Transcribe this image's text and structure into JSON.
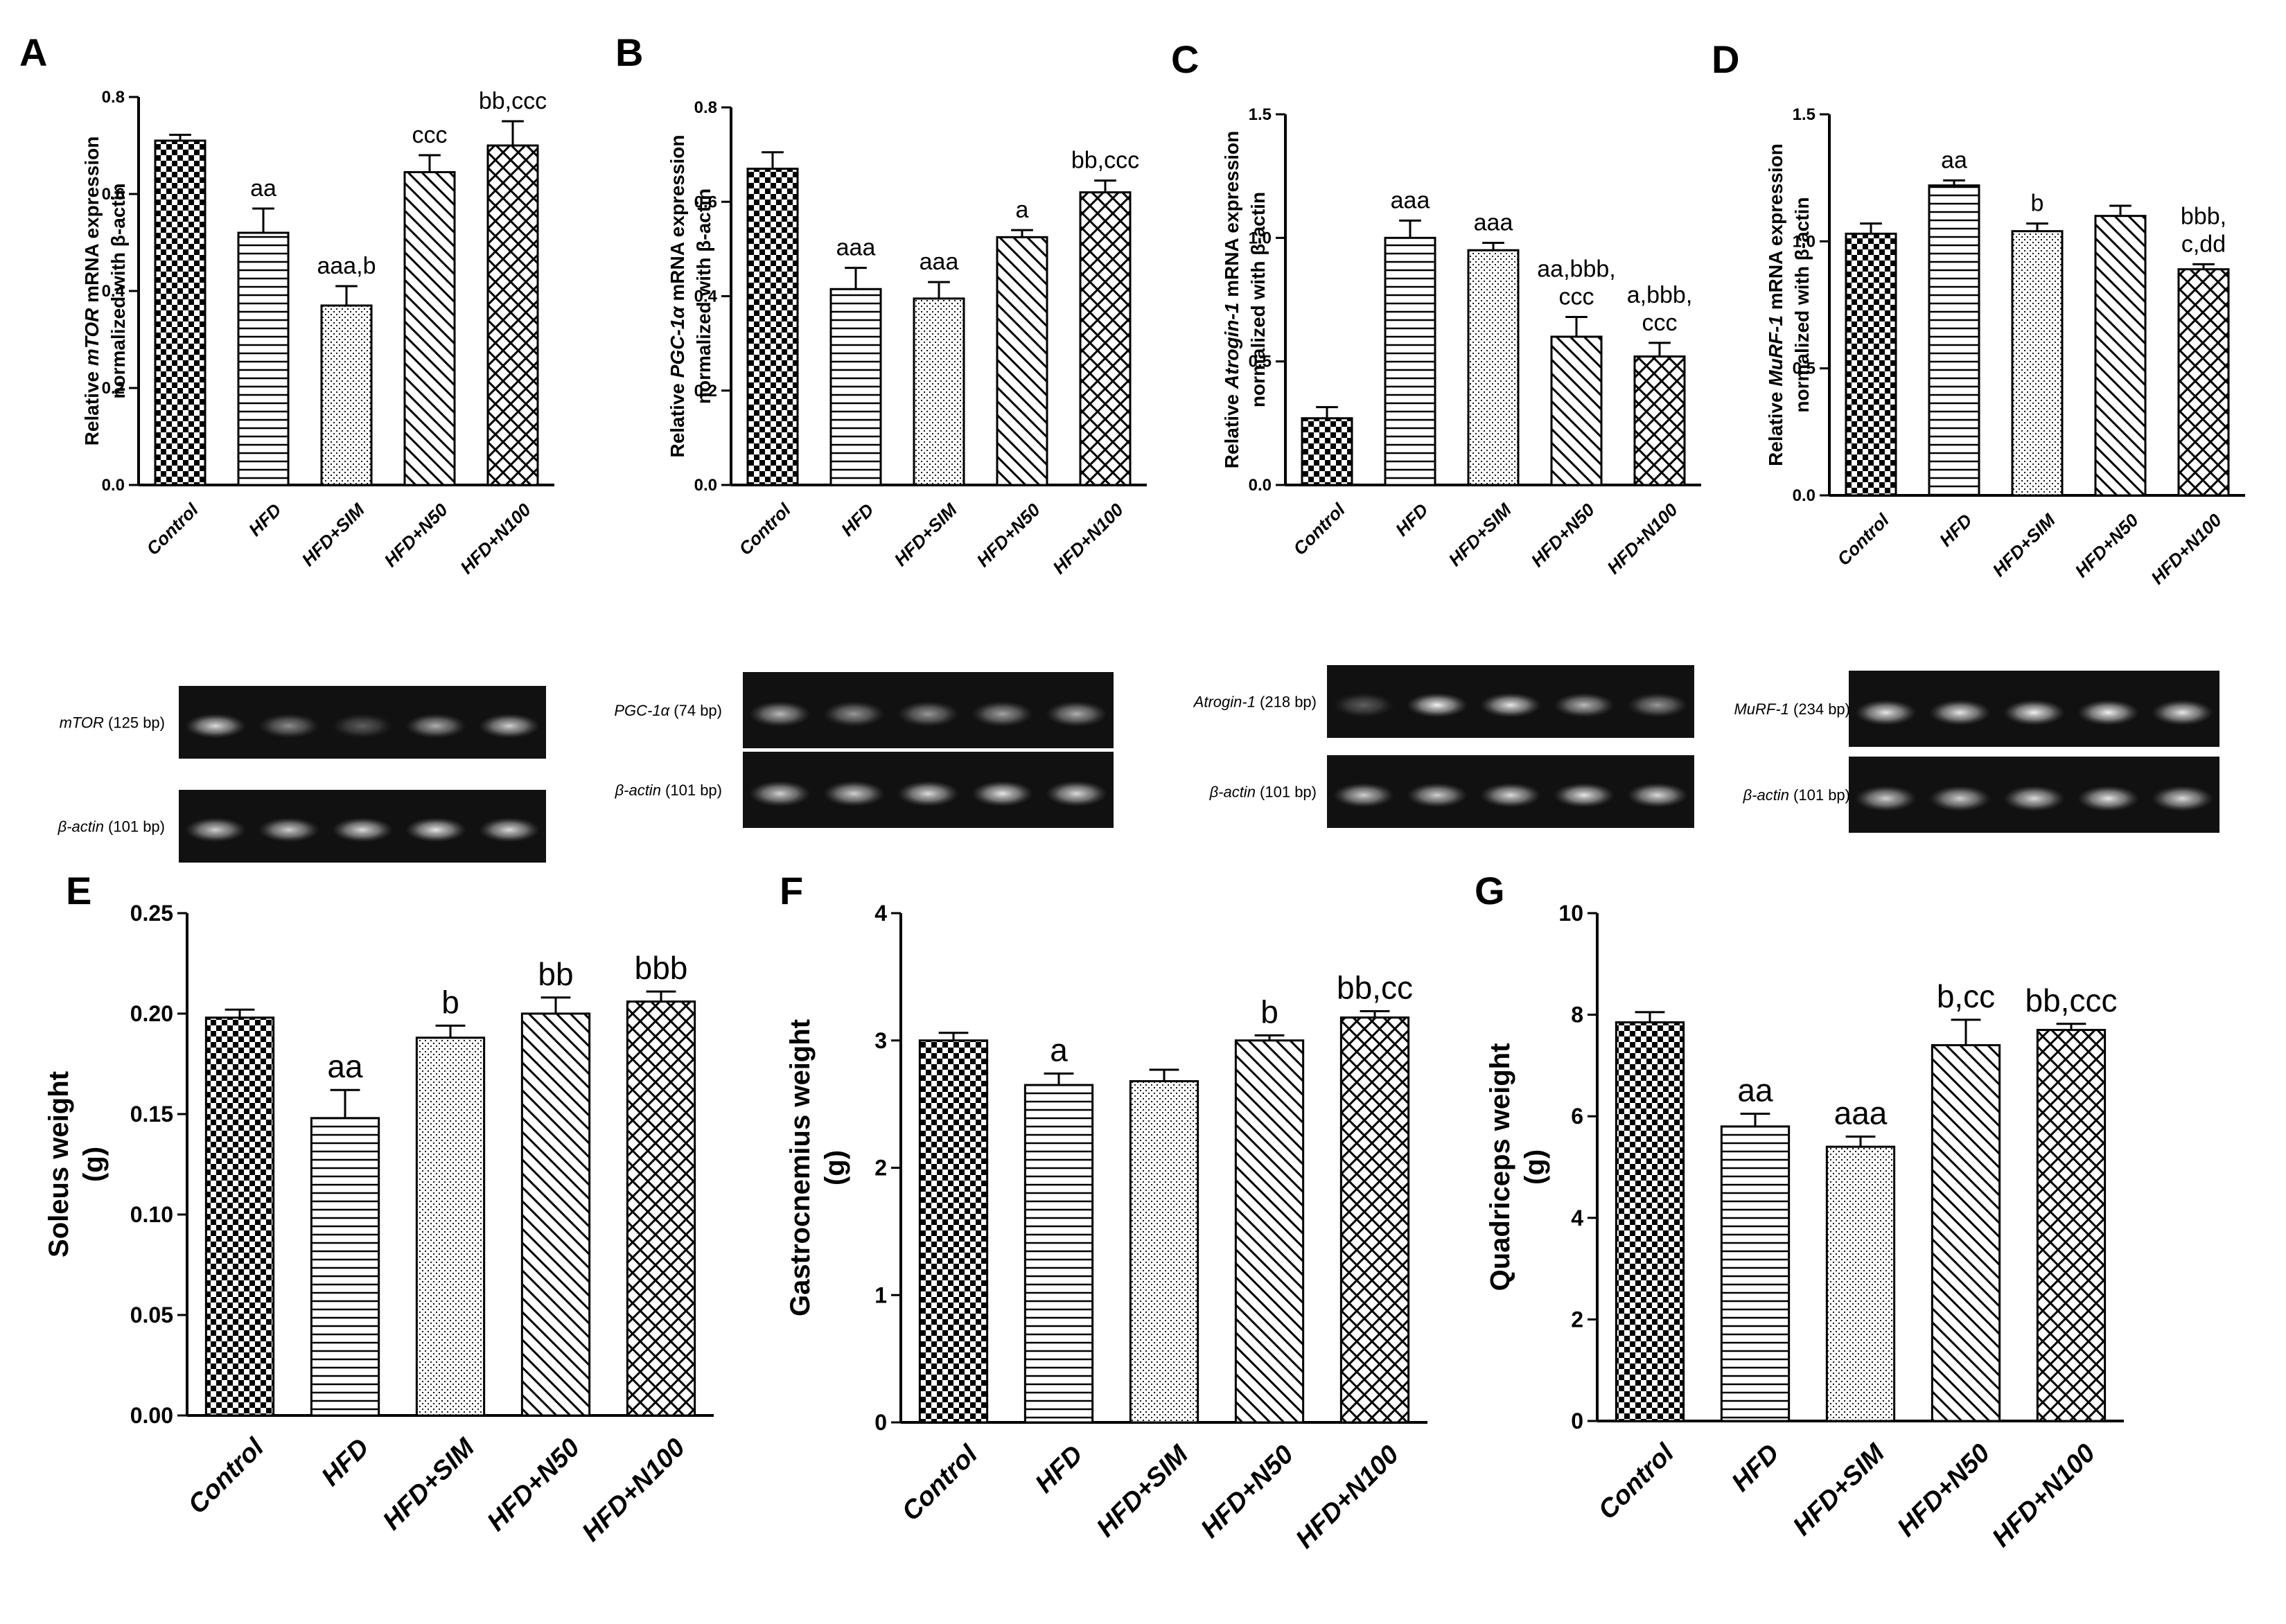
{
  "categories": [
    "Control",
    "HFD",
    "HFD+SIM",
    "HFD+N50",
    "HFD+N100"
  ],
  "chart_data": [
    {
      "id": "A",
      "type": "bar",
      "ylabel_line1_pre": "Relative ",
      "ylabel_gene": "mTOR",
      "ylabel_line1_post": " mRNA expression",
      "ylabel_line2": "normalized with β-actin",
      "ylim": [
        0,
        0.8
      ],
      "ticks": [
        "0.0",
        "0.2",
        "0.4",
        "0.6",
        "0.8"
      ],
      "values": [
        0.71,
        0.52,
        0.37,
        0.645,
        0.7
      ],
      "errors": [
        0.012,
        0.05,
        0.04,
        0.035,
        0.05
      ],
      "labels": [
        [],
        [
          "aa"
        ],
        [
          "aaa,b"
        ],
        [
          "ccc"
        ],
        [
          "bb,ccc"
        ]
      ]
    },
    {
      "id": "B",
      "type": "bar",
      "ylabel_line1_pre": "Relative ",
      "ylabel_gene": "PGC-1α",
      "ylabel_line1_post": " mRNA expression",
      "ylabel_line2": "normalized with β-actin",
      "ylim": [
        0,
        0.8
      ],
      "ticks": [
        "0.0",
        "0.2",
        "0.4",
        "0.6",
        "0.8"
      ],
      "values": [
        0.67,
        0.415,
        0.395,
        0.525,
        0.62
      ],
      "errors": [
        0.035,
        0.045,
        0.035,
        0.015,
        0.025
      ],
      "labels": [
        [],
        [
          "aaa"
        ],
        [
          "aaa"
        ],
        [
          "a"
        ],
        [
          "bb,ccc"
        ]
      ]
    },
    {
      "id": "C",
      "type": "bar",
      "ylabel_line1_pre": "Relative ",
      "ylabel_gene": "Atrogin-1",
      "ylabel_line1_post": " mRNA expression",
      "ylabel_line2": "normalized with β-actin",
      "ylim": [
        0,
        1.5
      ],
      "ticks": [
        "0.0",
        "0.5",
        "1.0",
        "1.5"
      ],
      "values": [
        0.27,
        1.0,
        0.95,
        0.6,
        0.52
      ],
      "errors": [
        0.045,
        0.07,
        0.03,
        0.08,
        0.055
      ],
      "labels": [
        [],
        [
          "aaa"
        ],
        [
          "aaa"
        ],
        [
          "aa,bbb,",
          "ccc"
        ],
        [
          "a,bbb,",
          "ccc"
        ]
      ]
    },
    {
      "id": "D",
      "type": "bar",
      "ylabel_line1_pre": "Relative ",
      "ylabel_gene": "MuRF-1",
      "ylabel_line1_post": " mRNA expression",
      "ylabel_line2": "normalized with β-actin",
      "ylim": [
        0,
        1.5
      ],
      "ticks": [
        "0.0",
        "0.5",
        "1.0",
        "1.5"
      ],
      "values": [
        1.03,
        1.22,
        1.04,
        1.1,
        0.89
      ],
      "errors": [
        0.04,
        0.02,
        0.03,
        0.04,
        0.02
      ],
      "labels": [
        [],
        [
          "aa"
        ],
        [
          "b"
        ],
        [],
        [
          "bbb,",
          "c,dd"
        ]
      ]
    },
    {
      "id": "E",
      "type": "bar",
      "ylabel_line1": "Soleus weight",
      "ylabel_line2": "(g)",
      "ylim": [
        0,
        0.25
      ],
      "ticks": [
        "0.00",
        "0.05",
        "0.10",
        "0.15",
        "0.20",
        "0.25"
      ],
      "values": [
        0.198,
        0.148,
        0.188,
        0.2,
        0.206
      ],
      "errors": [
        0.004,
        0.014,
        0.006,
        0.008,
        0.005
      ],
      "labels": [
        [],
        [
          "aa"
        ],
        [
          "b"
        ],
        [
          "bb"
        ],
        [
          "bbb"
        ]
      ]
    },
    {
      "id": "F",
      "type": "bar",
      "ylabel_line1": "Gastrocnemius weight",
      "ylabel_line2": "(g)",
      "ylim": [
        0,
        4
      ],
      "ticks": [
        "0",
        "1",
        "2",
        "3",
        "4"
      ],
      "values": [
        3.0,
        2.65,
        2.68,
        3.0,
        3.18
      ],
      "errors": [
        0.06,
        0.09,
        0.09,
        0.04,
        0.05
      ],
      "labels": [
        [],
        [
          "a"
        ],
        [],
        [
          "b"
        ],
        [
          "bb,cc"
        ]
      ]
    },
    {
      "id": "G",
      "type": "bar",
      "ylabel_line1": "Quadriceps weight",
      "ylabel_line2": "(g)",
      "ylim": [
        0,
        10
      ],
      "ticks": [
        "0",
        "2",
        "4",
        "6",
        "8",
        "10"
      ],
      "values": [
        7.85,
        5.8,
        5.4,
        7.4,
        7.7
      ],
      "errors": [
        0.2,
        0.25,
        0.2,
        0.5,
        0.12
      ],
      "labels": [
        [],
        [
          "aa"
        ],
        [
          "aaa"
        ],
        [
          "b,cc"
        ],
        [
          "bb,ccc"
        ]
      ]
    }
  ],
  "gels": [
    {
      "panel": "A",
      "target_gene": "mTOR",
      "target_size": " (125 bp)",
      "actin_gene": "β-actin",
      "actin_size": " (101 bp)"
    },
    {
      "panel": "B",
      "target_gene": "PGC-1α",
      "target_size": " (74 bp)",
      "actin_gene": "β-actin",
      "actin_size": " (101 bp)"
    },
    {
      "panel": "C",
      "target_gene": "Atrogin-1",
      "target_size": " (218 bp)",
      "actin_gene": "β-actin",
      "actin_size": " (101 bp)"
    },
    {
      "panel": "D",
      "target_gene": "MuRF-1",
      "target_size": " (234 bp)",
      "actin_gene": "β-actin",
      "actin_size": " (101 bp)"
    }
  ]
}
